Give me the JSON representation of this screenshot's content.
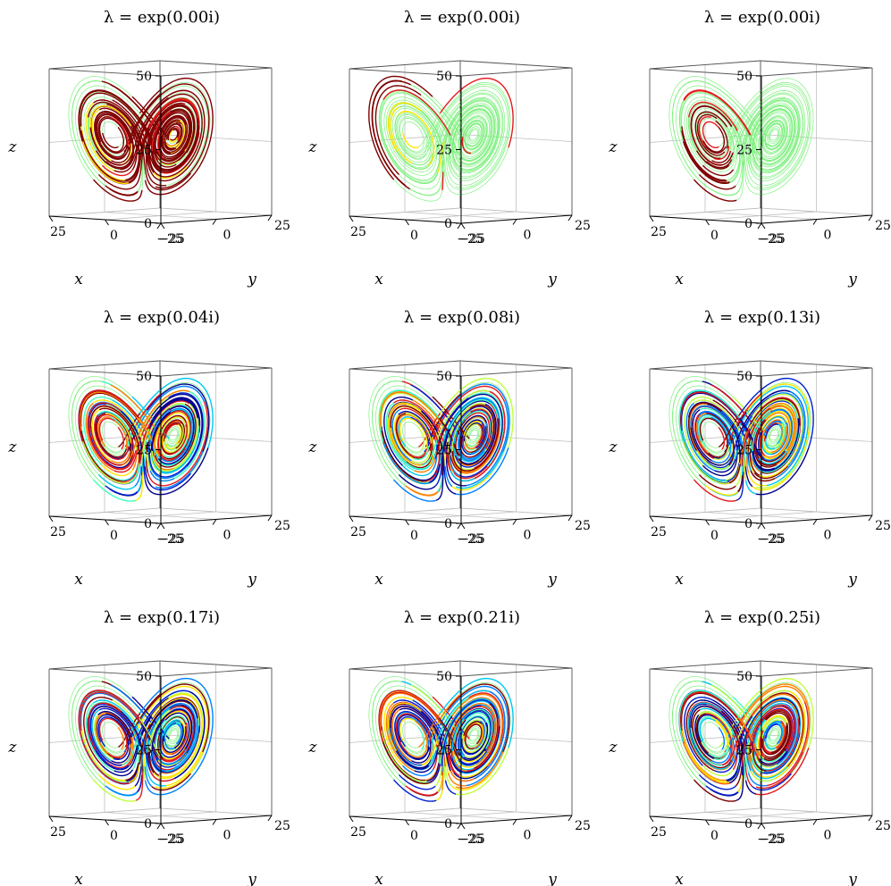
{
  "chart_data": [
    {
      "type": "line",
      "title": "λ = exp(0.00i)",
      "xlabel": "x",
      "ylabel": "y",
      "zlabel": "z",
      "xlim": [
        -25,
        25
      ],
      "ylim": [
        -25,
        25
      ],
      "zlim": [
        0,
        50
      ],
      "xticks": [
        "−25",
        "0",
        "25"
      ],
      "yticks": [
        "−25",
        "0",
        "25"
      ],
      "zticks": [
        "0",
        "25",
        "50"
      ],
      "grid": true,
      "phase": 0.0
    },
    {
      "type": "line",
      "title": "λ = exp(0.00i)",
      "xlabel": "x",
      "ylabel": "y",
      "zlabel": "z",
      "xlim": [
        -25,
        25
      ],
      "ylim": [
        -25,
        25
      ],
      "zlim": [
        0,
        50
      ],
      "xticks": [
        "−25",
        "0",
        "25"
      ],
      "yticks": [
        "−25",
        "0",
        "25"
      ],
      "zticks": [
        "0",
        "25",
        "50"
      ],
      "grid": true,
      "phase": 0.0
    },
    {
      "type": "line",
      "title": "λ = exp(0.00i)",
      "xlabel": "x",
      "ylabel": "y",
      "zlabel": "z",
      "xlim": [
        -25,
        25
      ],
      "ylim": [
        -25,
        25
      ],
      "zlim": [
        0,
        50
      ],
      "xticks": [
        "−25",
        "0",
        "25"
      ],
      "yticks": [
        "−25",
        "0",
        "25"
      ],
      "zticks": [
        "0",
        "25",
        "50"
      ],
      "grid": true,
      "phase": 0.0
    },
    {
      "type": "line",
      "title": "λ = exp(0.04i)",
      "xlabel": "x",
      "ylabel": "y",
      "zlabel": "z",
      "xlim": [
        -25,
        25
      ],
      "ylim": [
        -25,
        25
      ],
      "zlim": [
        0,
        50
      ],
      "xticks": [
        "−25",
        "0",
        "25"
      ],
      "yticks": [
        "−25",
        "0",
        "25"
      ],
      "zticks": [
        "0",
        "25",
        "50"
      ],
      "grid": true,
      "phase": 0.04
    },
    {
      "type": "line",
      "title": "λ = exp(0.08i)",
      "xlabel": "x",
      "ylabel": "y",
      "zlabel": "z",
      "xlim": [
        -25,
        25
      ],
      "ylim": [
        -25,
        25
      ],
      "zlim": [
        0,
        50
      ],
      "xticks": [
        "−25",
        "0",
        "25"
      ],
      "yticks": [
        "−25",
        "0",
        "25"
      ],
      "zticks": [
        "0",
        "25",
        "50"
      ],
      "grid": true,
      "phase": 0.08
    },
    {
      "type": "line",
      "title": "λ = exp(0.13i)",
      "xlabel": "x",
      "ylabel": "y",
      "zlabel": "z",
      "xlim": [
        -25,
        25
      ],
      "ylim": [
        -25,
        25
      ],
      "zlim": [
        0,
        50
      ],
      "xticks": [
        "−25",
        "0",
        "25"
      ],
      "yticks": [
        "−25",
        "0",
        "25"
      ],
      "zticks": [
        "0",
        "25",
        "50"
      ],
      "grid": true,
      "phase": 0.13
    },
    {
      "type": "line",
      "title": "λ = exp(0.17i)",
      "xlabel": "x",
      "ylabel": "y",
      "zlabel": "z",
      "xlim": [
        -25,
        25
      ],
      "ylim": [
        -25,
        25
      ],
      "zlim": [
        0,
        50
      ],
      "xticks": [
        "−25",
        "0",
        "25"
      ],
      "yticks": [
        "−25",
        "0",
        "25"
      ],
      "zticks": [
        "0",
        "25",
        "50"
      ],
      "grid": true,
      "phase": 0.17
    },
    {
      "type": "line",
      "title": "λ = exp(0.21i)",
      "xlabel": "x",
      "ylabel": "y",
      "zlabel": "z",
      "xlim": [
        -25,
        25
      ],
      "ylim": [
        -25,
        25
      ],
      "zlim": [
        0,
        50
      ],
      "xticks": [
        "−25",
        "0",
        "25"
      ],
      "yticks": [
        "−25",
        "0",
        "25"
      ],
      "zticks": [
        "0",
        "25",
        "50"
      ],
      "grid": true,
      "phase": 0.21
    },
    {
      "type": "line",
      "title": "λ = exp(0.25i)",
      "xlabel": "x",
      "ylabel": "y",
      "zlabel": "z",
      "xlim": [
        -25,
        25
      ],
      "ylim": [
        -25,
        25
      ],
      "zlim": [
        0,
        50
      ],
      "xticks": [
        "−25",
        "0",
        "25"
      ],
      "yticks": [
        "−25",
        "0",
        "25"
      ],
      "zticks": [
        "0",
        "25",
        "50"
      ],
      "grid": true,
      "phase": 0.25
    }
  ],
  "colors": {
    "trajectory": "#80f080",
    "dark_red": "#7f0000",
    "red": "#e41a1c",
    "yellow": "#ffe600",
    "cyan": "#00c8f0",
    "blue": "#0020d0",
    "navy": "#00008f",
    "axis": "#000000",
    "grid": "#bfbfbf"
  }
}
